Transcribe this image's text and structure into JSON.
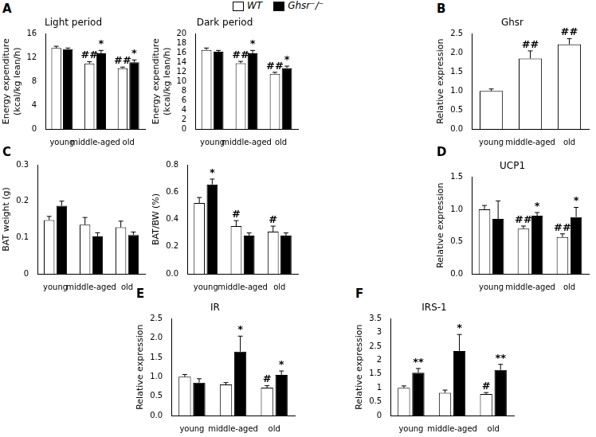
{
  "chart_data": [
    {
      "panel": "A",
      "type": "bar",
      "title": "Light period",
      "y_label": [
        "Energy expenditure",
        "(kcal/kg lean/h)"
      ],
      "categories": [
        "young",
        "middle-aged",
        "old"
      ],
      "ylim": [
        0,
        16
      ],
      "yticks": [
        0,
        4,
        8,
        12,
        16
      ],
      "grid": false,
      "legend": "top",
      "series": [
        {
          "name": "WT",
          "color": "#ffffff",
          "values": [
            13.6,
            11.0,
            10.2
          ],
          "errors": [
            0.3,
            0.3,
            0.2
          ],
          "significance": [
            null,
            "##",
            "##"
          ]
        },
        {
          "name": "Ghsr⁻/⁻",
          "color": "#000000",
          "values": [
            13.4,
            12.7,
            11.2
          ],
          "errors": [
            0.2,
            0.5,
            0.4
          ],
          "significance": [
            null,
            "*",
            "*"
          ]
        }
      ]
    },
    {
      "type": "bar",
      "title": "Dark period",
      "y_label": [
        "Energy expenditure",
        "(kcal/kg lean/h)"
      ],
      "categories": [
        "young",
        "middle-aged",
        "old"
      ],
      "ylim": [
        0,
        20
      ],
      "yticks": [
        0,
        2,
        4,
        6,
        8,
        10,
        12,
        14,
        16,
        18,
        20
      ],
      "grid": false,
      "series": [
        {
          "name": "WT",
          "color": "#ffffff",
          "values": [
            16.6,
            13.8,
            11.6
          ],
          "errors": [
            0.4,
            0.4,
            0.3
          ],
          "significance": [
            null,
            "##",
            "##"
          ]
        },
        {
          "name": "Ghsr⁻/⁻",
          "color": "#000000",
          "values": [
            16.2,
            15.9,
            12.8
          ],
          "errors": [
            0.3,
            0.6,
            0.4
          ],
          "significance": [
            null,
            "*",
            "*"
          ]
        }
      ]
    },
    {
      "panel": "B",
      "type": "bar",
      "title": "Ghsr",
      "y_label": [
        "Relative expression"
      ],
      "categories": [
        "young",
        "middle-aged",
        "old"
      ],
      "ylim": [
        0,
        2.5
      ],
      "yticks": [
        {
          "value": 0,
          "label": "0.0"
        },
        {
          "value": 0.5,
          "label": "0.5"
        },
        {
          "value": 1,
          "label": "1.0"
        },
        {
          "value": 1.5,
          "label": "1.5"
        },
        {
          "value": 2,
          "label": "2.0"
        },
        {
          "value": 2.5,
          "label": "2.5"
        }
      ],
      "grid": false,
      "series": [
        {
          "name": "WT",
          "color": "#ffffff",
          "values": [
            1.0,
            1.85,
            2.22
          ],
          "errors": [
            0.05,
            0.2,
            0.15
          ],
          "significance": [
            null,
            "##",
            "##"
          ]
        }
      ]
    },
    {
      "panel": "C",
      "type": "bar",
      "y_label": [
        "BAT weight (g)"
      ],
      "categories": [
        "young",
        "middle-aged",
        "old"
      ],
      "ylim": [
        0,
        0.3
      ],
      "yticks": [
        0,
        0.1,
        0.2,
        0.3
      ],
      "grid": false,
      "series": [
        {
          "name": "WT",
          "color": "#ffffff",
          "values": [
            0.148,
            0.135,
            0.128
          ],
          "errors": [
            0.01,
            0.02,
            0.017
          ],
          "significance": [
            null,
            null,
            null
          ]
        },
        {
          "name": "Ghsr⁻/⁻",
          "color": "#000000",
          "values": [
            0.187,
            0.103,
            0.107
          ],
          "errors": [
            0.013,
            0.01,
            0.008
          ],
          "significance": [
            null,
            null,
            null
          ]
        }
      ]
    },
    {
      "type": "bar",
      "y_label": [
        "BAT/BW (%)"
      ],
      "categories": [
        "young",
        "middle-aged",
        "old"
      ],
      "ylim": [
        0,
        0.8
      ],
      "yticks": [
        {
          "value": 0,
          "label": "0.0"
        },
        {
          "value": 0.2,
          "label": "0.2"
        },
        {
          "value": 0.4,
          "label": "0.4"
        },
        {
          "value": 0.6,
          "label": "0.6"
        },
        {
          "value": 0.8,
          "label": "0.8"
        }
      ],
      "grid": false,
      "series": [
        {
          "name": "WT",
          "color": "#ffffff",
          "values": [
            0.52,
            0.35,
            0.31
          ],
          "errors": [
            0.04,
            0.04,
            0.04
          ],
          "significance": [
            null,
            "#",
            "#"
          ]
        },
        {
          "name": "Ghsr⁻/⁻",
          "color": "#000000",
          "values": [
            0.655,
            0.28,
            0.28
          ],
          "errors": [
            0.04,
            0.02,
            0.02
          ],
          "significance": [
            "*",
            null,
            null
          ]
        }
      ]
    },
    {
      "panel": "D",
      "type": "bar",
      "title": "UCP1",
      "y_label": [
        "Relative expression"
      ],
      "categories": [
        "young",
        "middle-aged",
        "old"
      ],
      "ylim": [
        0,
        1.5
      ],
      "yticks": [
        {
          "value": 0,
          "label": "0.0"
        },
        {
          "value": 0.5,
          "label": "0.5"
        },
        {
          "value": 1,
          "label": "1.0"
        },
        {
          "value": 1.5,
          "label": "1.5"
        }
      ],
      "grid": false,
      "series": [
        {
          "name": "WT",
          "color": "#ffffff",
          "values": [
            1.0,
            0.7,
            0.57
          ],
          "errors": [
            0.06,
            0.04,
            0.05
          ],
          "significance": [
            null,
            "##",
            "##"
          ]
        },
        {
          "name": "Ghsr⁻/⁻",
          "color": "#000000",
          "values": [
            0.85,
            0.9,
            0.88
          ],
          "errors": [
            0.28,
            0.05,
            0.15
          ],
          "significance": [
            null,
            "*",
            "*"
          ]
        }
      ]
    },
    {
      "panel": "E",
      "type": "bar",
      "title": "IR",
      "y_label": [
        "Relative expression"
      ],
      "categories": [
        "young",
        "middle-aged",
        "old"
      ],
      "ylim": [
        0,
        2.5
      ],
      "yticks": [
        {
          "value": 0,
          "label": "0.0"
        },
        {
          "value": 0.5,
          "label": "0.5"
        },
        {
          "value": 1,
          "label": "1.0"
        },
        {
          "value": 1.5,
          "label": "1.5"
        },
        {
          "value": 2,
          "label": "2.0"
        },
        {
          "value": 2.5,
          "label": "2.5"
        }
      ],
      "grid": false,
      "series": [
        {
          "name": "WT",
          "color": "#ffffff",
          "values": [
            1.0,
            0.8,
            0.72
          ],
          "errors": [
            0.06,
            0.05,
            0.05
          ],
          "significance": [
            null,
            null,
            "#"
          ]
        },
        {
          "name": "Ghsr⁻/⁻",
          "color": "#000000",
          "values": [
            0.85,
            1.65,
            1.05
          ],
          "errors": [
            0.1,
            0.4,
            0.1
          ],
          "significance": [
            null,
            "*",
            "*"
          ]
        }
      ]
    },
    {
      "panel": "F",
      "type": "bar",
      "title": "IRS-1",
      "y_label": [
        "Relative expression"
      ],
      "categories": [
        "young",
        "middle-aged",
        "old"
      ],
      "ylim": [
        0,
        3.5
      ],
      "yticks": [
        0,
        0.5,
        1,
        1.5,
        2,
        2.5,
        3,
        3.5
      ],
      "grid": false,
      "series": [
        {
          "name": "WT",
          "color": "#ffffff",
          "values": [
            1.0,
            0.82,
            0.78
          ],
          "errors": [
            0.07,
            0.1,
            0.05
          ],
          "significance": [
            null,
            null,
            "#"
          ]
        },
        {
          "name": "Ghsr⁻/⁻",
          "color": "#000000",
          "values": [
            1.55,
            2.33,
            1.65
          ],
          "errors": [
            0.15,
            0.6,
            0.2
          ],
          "significance": [
            "**",
            "*",
            "**"
          ]
        }
      ]
    }
  ]
}
